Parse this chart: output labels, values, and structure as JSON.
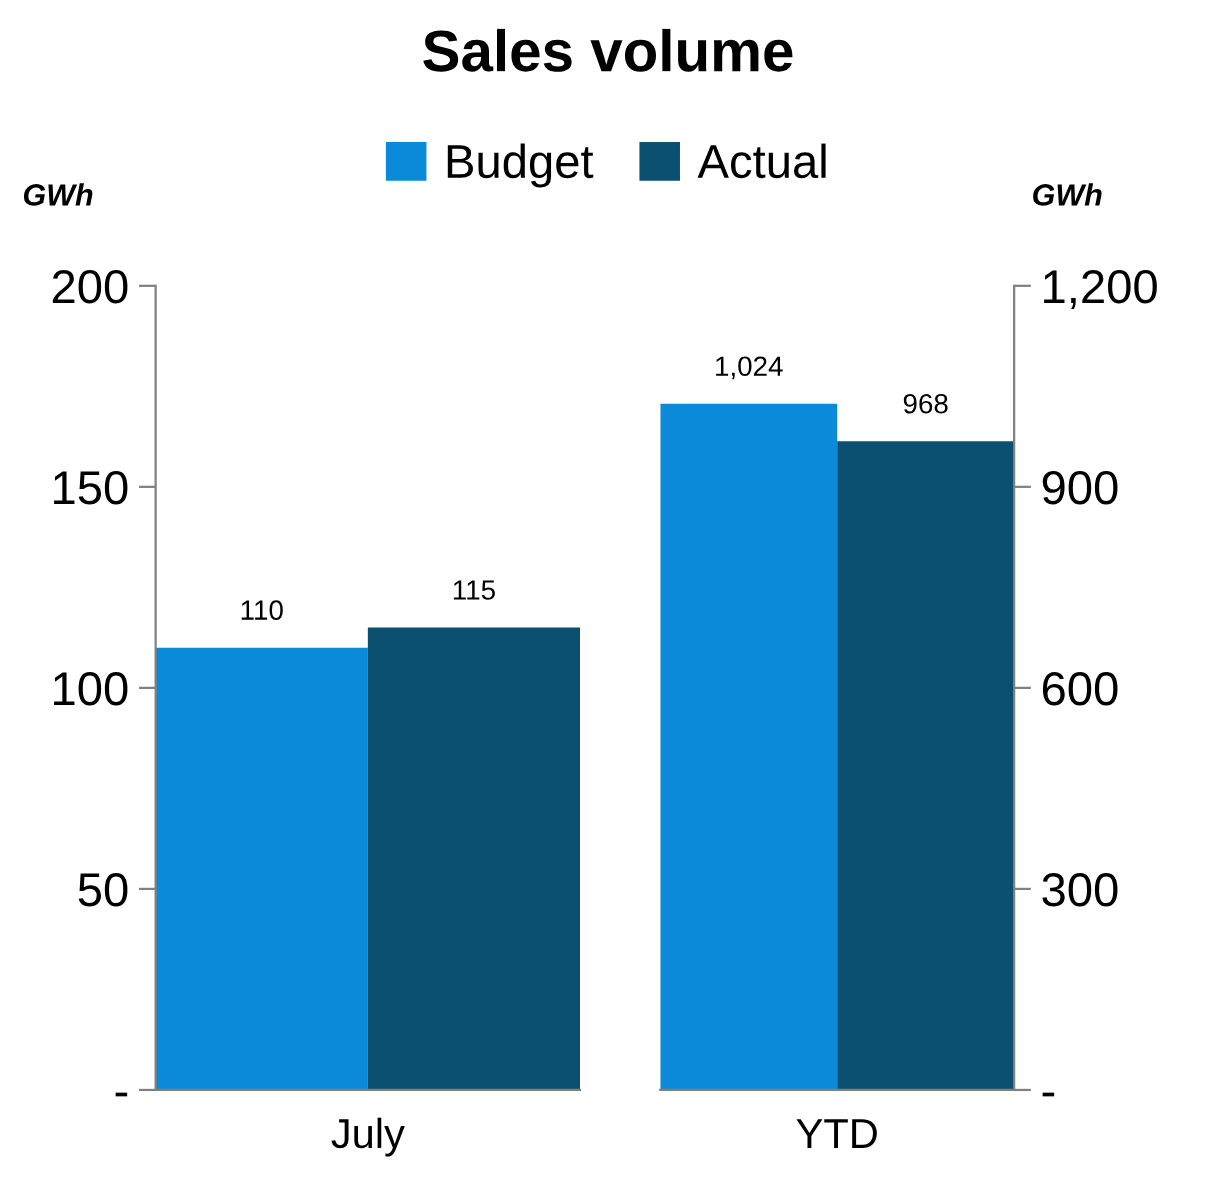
{
  "chart_data": [
    {
      "type": "bar",
      "title": "Sales volume",
      "ylabel": "GWh",
      "categories": [
        "July"
      ],
      "legend": "top",
      "data_labels": true,
      "series": [
        {
          "name": "Budget",
          "color": "#0a8ad8",
          "values": [
            110
          ]
        },
        {
          "name": "Actual",
          "color": "#0b5070",
          "values": [
            115
          ]
        }
      ],
      "ylim": [
        0,
        200
      ],
      "yticks": [
        {
          "value": 0,
          "label": "-"
        },
        50,
        100,
        150,
        200
      ]
    },
    {
      "type": "bar",
      "y2label": "GWh",
      "categories": [
        "YTD"
      ],
      "series": [
        {
          "color": "#0a8ad8",
          "values": [
            1024
          ],
          "value_labels": [
            "1,024"
          ],
          "axis": "y2"
        },
        {
          "color": "#0b5070",
          "values": [
            968
          ],
          "value_labels": [
            "968"
          ],
          "axis": "y2"
        }
      ],
      "y2lim": [
        0,
        1200
      ],
      "y2ticks": [
        {
          "value": 0,
          "label": "-"
        },
        300,
        600,
        900,
        {
          "value": 1200,
          "label": "1,200"
        }
      ]
    }
  ]
}
